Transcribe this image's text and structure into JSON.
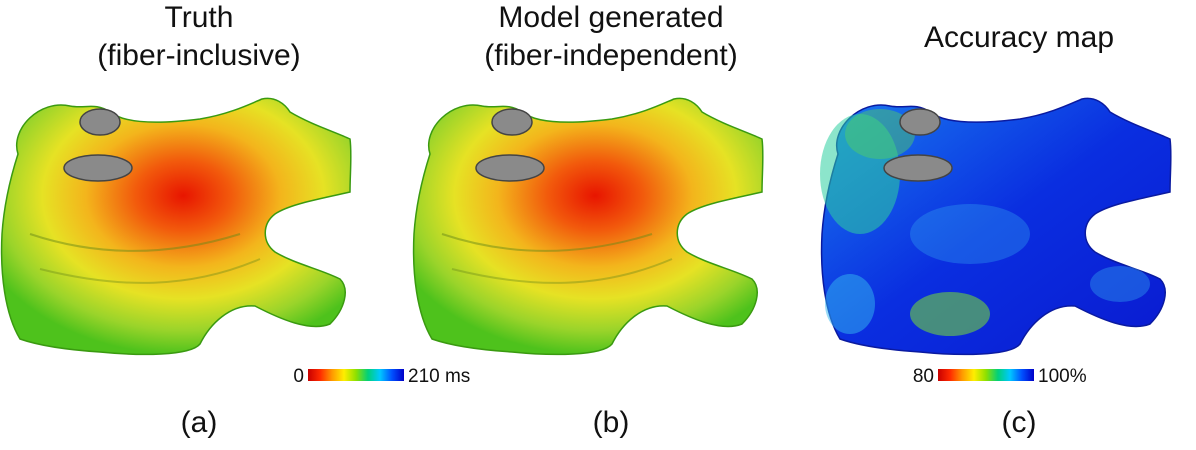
{
  "panels": [
    {
      "title_line1": "Truth",
      "title_line2": "(fiber-inclusive)",
      "caption": "(a)",
      "kind": "activation-time"
    },
    {
      "title_line1": "Model generated",
      "title_line2": "(fiber-independent)",
      "caption": "(b)",
      "kind": "activation-time"
    },
    {
      "title_line1": "Accuracy map",
      "title_line2": "",
      "caption": "(c)",
      "kind": "accuracy"
    }
  ],
  "colorbar_time": {
    "min_label": "0",
    "max_label": "210 ms"
  },
  "colorbar_accuracy": {
    "min_label": "80",
    "max_label": "100%"
  },
  "colors": {
    "early": "#d40000",
    "mid": "#f2d21a",
    "late": "#5ccc1a",
    "accuracy_high": "#0a1ee0",
    "accuracy_mid": "#33a6f0",
    "valve": "#8a8a8a"
  }
}
